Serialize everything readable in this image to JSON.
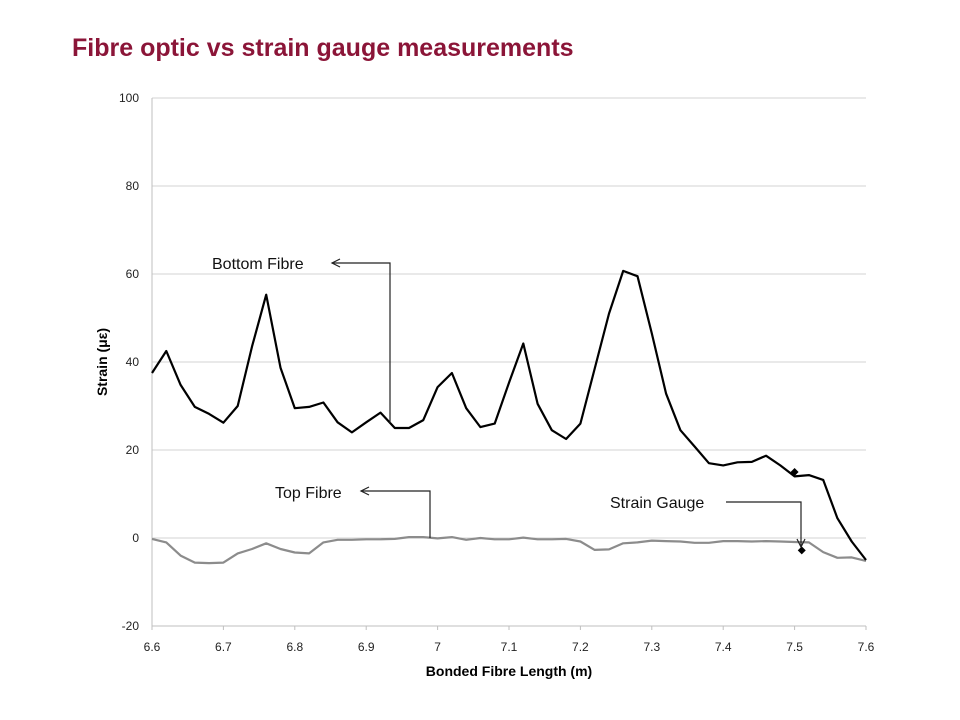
{
  "title": "Fibre optic vs strain gauge measurements",
  "chart_data": {
    "type": "line",
    "xlabel": "Bonded Fibre Length (m)",
    "ylabel": "Strain (με)",
    "xlim": [
      6.6,
      7.6
    ],
    "ylim": [
      -20,
      100
    ],
    "xticks": [
      "6.6",
      "6.7",
      "6.8",
      "6.9",
      "7",
      "7.1",
      "7.2",
      "7.3",
      "7.4",
      "7.5",
      "7.6"
    ],
    "yticks": [
      "-20",
      "0",
      "20",
      "40",
      "60",
      "80",
      "100"
    ],
    "grid": "horizontal",
    "annotations": [
      "Bottom Fibre",
      "Top Fibre",
      "Strain Gauge"
    ],
    "series": [
      {
        "name": "Bottom Fibre",
        "color": "#000000",
        "x": [
          6.6,
          6.62,
          6.64,
          6.66,
          6.68,
          6.7,
          6.72,
          6.74,
          6.76,
          6.78,
          6.8,
          6.82,
          6.84,
          6.86,
          6.88,
          6.9,
          6.92,
          6.94,
          6.96,
          6.98,
          7.0,
          7.02,
          7.04,
          7.06,
          7.08,
          7.1,
          7.12,
          7.14,
          7.16,
          7.18,
          7.2,
          7.22,
          7.24,
          7.26,
          7.28,
          7.3,
          7.32,
          7.34,
          7.36,
          7.38,
          7.4,
          7.42,
          7.44,
          7.46,
          7.48,
          7.5,
          7.52,
          7.54,
          7.56,
          7.58,
          7.6
        ],
        "y": [
          37.5,
          42.5,
          34.8,
          29.8,
          28.2,
          26.2,
          30,
          43.5,
          55.3,
          38.7,
          29.5,
          29.8,
          30.8,
          26.3,
          24,
          26.3,
          28.5,
          25,
          25,
          26.8,
          34.3,
          37.5,
          29.5,
          25.2,
          26,
          35.3,
          44.2,
          30.5,
          24.5,
          22.5,
          26,
          38.5,
          51,
          60.7,
          59.5,
          46.5,
          32.8,
          24.5,
          20.8,
          17,
          16.5,
          17.2,
          17.3,
          18.7,
          16.5,
          14,
          14.3,
          13.2,
          4.5,
          -0.8,
          -5
        ]
      },
      {
        "name": "Top Fibre",
        "color": "#8c8c8c",
        "x": [
          6.6,
          6.62,
          6.64,
          6.66,
          6.68,
          6.7,
          6.72,
          6.74,
          6.76,
          6.78,
          6.8,
          6.82,
          6.84,
          6.86,
          6.88,
          6.9,
          6.92,
          6.94,
          6.96,
          6.98,
          7.0,
          7.02,
          7.04,
          7.06,
          7.08,
          7.1,
          7.12,
          7.14,
          7.16,
          7.18,
          7.2,
          7.22,
          7.24,
          7.26,
          7.28,
          7.3,
          7.32,
          7.34,
          7.36,
          7.38,
          7.4,
          7.42,
          7.44,
          7.46,
          7.48,
          7.5,
          7.52,
          7.54,
          7.56,
          7.58,
          7.6
        ],
        "y": [
          -0.2,
          -1,
          -4,
          -5.6,
          -5.7,
          -5.6,
          -3.5,
          -2.5,
          -1.2,
          -2.5,
          -3.3,
          -3.5,
          -1,
          -0.4,
          -0.4,
          -0.3,
          -0.3,
          -0.2,
          0.2,
          0.2,
          -0.1,
          0.2,
          -0.4,
          0,
          -0.3,
          -0.3,
          0.1,
          -0.3,
          -0.3,
          -0.2,
          -0.8,
          -2.7,
          -2.6,
          -1.2,
          -1,
          -0.6,
          -0.7,
          -0.8,
          -1.1,
          -1.1,
          -0.7,
          -0.7,
          -0.8,
          -0.7,
          -0.8,
          -0.9,
          -1,
          -3.2,
          -4.5,
          -4.4,
          -5.2
        ]
      },
      {
        "name": "Strain Gauge",
        "color": "#000000",
        "x": [
          7.5,
          7.51
        ],
        "y": [
          15,
          -2.8
        ]
      }
    ]
  }
}
